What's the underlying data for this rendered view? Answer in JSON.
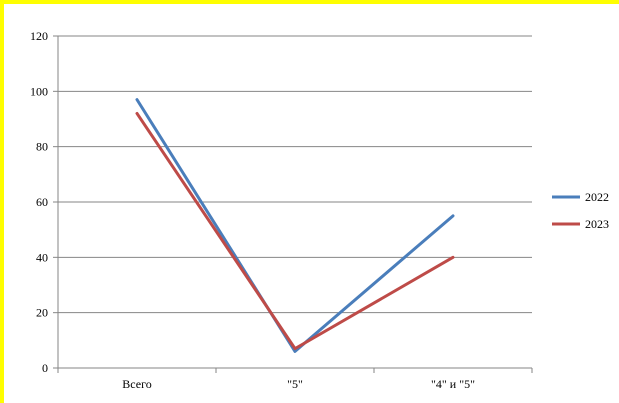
{
  "chart_data": {
    "type": "line",
    "categories": [
      "Всего",
      "\"5\"",
      "\"4\" и \"5\""
    ],
    "series": [
      {
        "name": "2022",
        "values": [
          97,
          6,
          55
        ],
        "color": "#4a7ebb"
      },
      {
        "name": "2023",
        "values": [
          92,
          7,
          40
        ],
        "color": "#be4b48"
      }
    ],
    "yticks": [
      "0",
      "20",
      "40",
      "60",
      "80",
      "100",
      "120"
    ],
    "ylim": [
      0,
      120
    ],
    "grid": true,
    "legend_position": "right",
    "title": "",
    "xlabel": "",
    "ylabel": ""
  },
  "colors": {
    "frame": "#fefe00",
    "grid": "#868686",
    "axis": "#868686"
  }
}
